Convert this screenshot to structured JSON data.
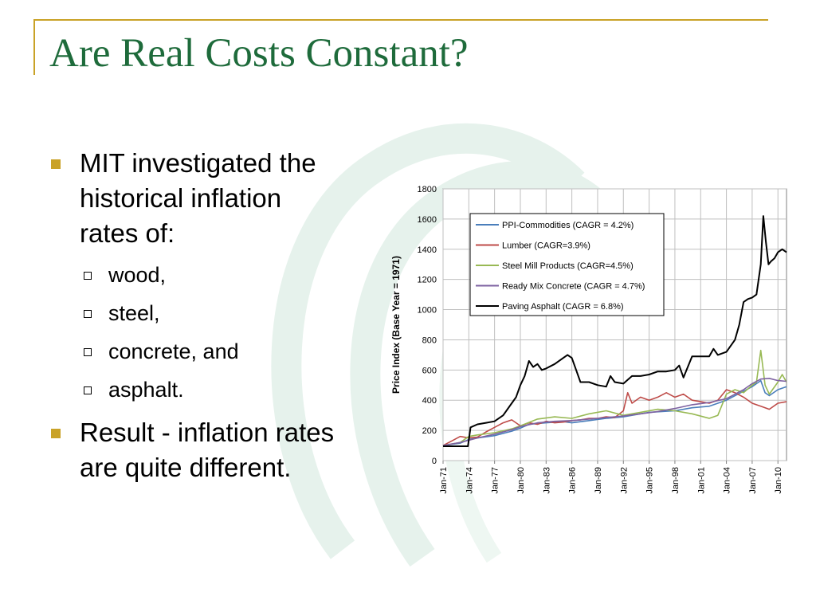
{
  "slide": {
    "title": "Are Real Costs Constant?",
    "bullets": [
      {
        "lines": [
          "MIT investigated the",
          "historical inflation",
          "rates of:"
        ],
        "sub": [
          "wood,",
          "steel,",
          "concrete, and",
          "asphalt."
        ]
      },
      {
        "lines": [
          "Result - inflation rates",
          "are quite different."
        ]
      }
    ],
    "colors": {
      "title": "#1e6b3b",
      "accent_gold": "#c9a227"
    }
  },
  "chart_data": {
    "type": "line",
    "title": "",
    "xlabel": "",
    "ylabel": "Price Index (Base Year = 1971)",
    "ylim": [
      0,
      1800
    ],
    "yticks": [
      0,
      200,
      400,
      600,
      800,
      1000,
      1200,
      1400,
      1600,
      1800
    ],
    "xlim": [
      1971,
      2011
    ],
    "xticks": [
      1971,
      1974,
      1977,
      1980,
      1983,
      1986,
      1989,
      1992,
      1995,
      1998,
      2001,
      2004,
      2007,
      2010
    ],
    "xtick_labels": [
      "Jan-71",
      "Jan-74",
      "Jan-77",
      "Jan-80",
      "Jan-83",
      "Jan-86",
      "Jan-89",
      "Jan-92",
      "Jan-95",
      "Jan-98",
      "Jan-01",
      "Jan-04",
      "Jan-07",
      "Jan-10"
    ],
    "grid": true,
    "legend_position": "top-left",
    "series": [
      {
        "name": "PPI-Commodities (CAGR = 4.2%)",
        "color": "#4a7ebb",
        "x": [
          1971,
          1973,
          1974,
          1975,
          1977,
          1979,
          1980,
          1981,
          1983,
          1985,
          1986,
          1988,
          1990,
          1992,
          1995,
          1998,
          2000,
          2002,
          2004,
          2006,
          2007,
          2008,
          2008.5,
          2009,
          2010,
          2011
        ],
        "y": [
          100,
          115,
          140,
          150,
          165,
          195,
          215,
          240,
          250,
          258,
          250,
          265,
          280,
          290,
          320,
          330,
          350,
          360,
          400,
          460,
          490,
          530,
          450,
          430,
          470,
          490
        ]
      },
      {
        "name": "Lumber (CAGR=3.9%)",
        "color": "#be4b48",
        "x": [
          1971,
          1972,
          1973,
          1974,
          1975,
          1976,
          1977,
          1978,
          1979,
          1980,
          1981,
          1982,
          1983,
          1984,
          1985,
          1986,
          1987,
          1988,
          1989,
          1990,
          1991,
          1992,
          1992.5,
          1993,
          1994,
          1995,
          1996,
          1997,
          1998,
          1999,
          2000,
          2001,
          2002,
          2003,
          2004,
          2005,
          2006,
          2007,
          2008,
          2009,
          2010,
          2011
        ],
        "y": [
          100,
          130,
          160,
          150,
          155,
          190,
          220,
          250,
          270,
          230,
          250,
          240,
          260,
          250,
          255,
          265,
          270,
          280,
          280,
          290,
          285,
          330,
          450,
          380,
          420,
          400,
          420,
          450,
          420,
          440,
          400,
          390,
          380,
          400,
          470,
          450,
          420,
          380,
          360,
          340,
          380,
          390
        ]
      },
      {
        "name": "Steel Mill Products (CAGR=4.5%)",
        "color": "#98b954",
        "x": [
          1971,
          1973,
          1974,
          1975,
          1977,
          1979,
          1980,
          1982,
          1984,
          1986,
          1988,
          1990,
          1992,
          1994,
          1996,
          1998,
          2000,
          2002,
          2003,
          2004,
          2005,
          2006,
          2007,
          2007.5,
          2008,
          2008.5,
          2009,
          2010,
          2010.5,
          2011
        ],
        "y": [
          100,
          120,
          160,
          170,
          185,
          210,
          230,
          275,
          290,
          280,
          310,
          330,
          300,
          320,
          340,
          330,
          310,
          280,
          300,
          440,
          470,
          450,
          500,
          520,
          730,
          500,
          440,
          520,
          570,
          520
        ]
      },
      {
        "name": "Ready Mix Concrete (CAGR = 4.7%)",
        "color": "#7e62a1",
        "x": [
          1971,
          1973,
          1975,
          1977,
          1979,
          1980,
          1982,
          1984,
          1986,
          1988,
          1990,
          1992,
          1994,
          1996,
          1998,
          2000,
          2002,
          2004,
          2006,
          2007,
          2008,
          2009,
          2010,
          2011
        ],
        "y": [
          100,
          120,
          150,
          175,
          205,
          225,
          250,
          260,
          265,
          275,
          285,
          295,
          310,
          325,
          345,
          370,
          385,
          410,
          470,
          510,
          540,
          545,
          530,
          525
        ]
      },
      {
        "name": "Paving Asphalt (CAGR = 6.8%)",
        "color": "#000000",
        "x": [
          1971,
          1972,
          1973,
          1973.9,
          1974.2,
          1975,
          1976,
          1977,
          1978,
          1979,
          1979.5,
          1980,
          1980.5,
          1981,
          1981.5,
          1982,
          1982.5,
          1983,
          1984,
          1985,
          1985.5,
          1986,
          1986.5,
          1987,
          1988,
          1989,
          1990,
          1990.5,
          1991,
          1992,
          1993,
          1994,
          1995,
          1996,
          1997,
          1998,
          1998.5,
          1999,
          2000,
          2001,
          2002,
          2002.5,
          2003,
          2004,
          2005,
          2005.5,
          2006,
          2006.5,
          2007,
          2007.5,
          2008,
          2008.3,
          2008.6,
          2008.9,
          2009.2,
          2009.6,
          2010,
          2010.5,
          2011
        ],
        "y": [
          95,
          95,
          95,
          95,
          220,
          240,
          250,
          260,
          300,
          380,
          420,
          500,
          560,
          660,
          620,
          640,
          600,
          610,
          640,
          680,
          700,
          680,
          600,
          520,
          520,
          500,
          490,
          560,
          520,
          510,
          560,
          560,
          570,
          590,
          590,
          600,
          630,
          550,
          690,
          690,
          690,
          740,
          700,
          720,
          800,
          900,
          1050,
          1070,
          1080,
          1100,
          1300,
          1620,
          1450,
          1300,
          1320,
          1340,
          1380,
          1400,
          1380
        ]
      }
    ]
  }
}
